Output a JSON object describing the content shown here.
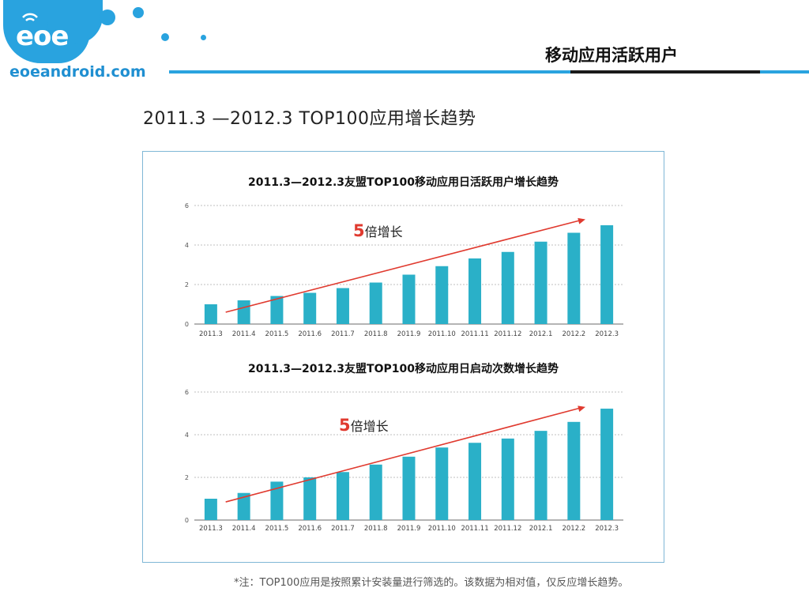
{
  "logo": {
    "text": "eoe",
    "domain": "eoeandroid.com"
  },
  "header": {
    "title": "移动应用活跃用户"
  },
  "page": {
    "title": "2011.3 —2012.3  TOP100应用增长趋势",
    "footnote": "*注：TOP100应用是按照累计安装量进行筛选的。该数据为相对值，仅反应增长趋势。"
  },
  "colors": {
    "bar": "#2ab0c8",
    "arrow": "#e03a2f",
    "brand": "#29a3df",
    "grid": "#bfbfbf"
  },
  "chart_data": [
    {
      "type": "bar",
      "title": "2011.3—2012.3友盟TOP100移动应用日活跃用户增长趋势",
      "categories": [
        "2011.3",
        "2011.4",
        "2011.5",
        "2011.6",
        "2011.7",
        "2011.8",
        "2011.9",
        "2011.10",
        "2011.11",
        "2011.12",
        "2012.1",
        "2012.2",
        "2012.3"
      ],
      "values": [
        1.0,
        1.2,
        1.42,
        1.58,
        1.82,
        2.1,
        2.5,
        2.93,
        3.32,
        3.65,
        4.17,
        4.62,
        5.0
      ],
      "ylim": [
        0,
        6
      ],
      "yticks": [
        "0",
        "2",
        "4",
        "6"
      ],
      "annotation": {
        "big": "5",
        "text": "倍增长"
      },
      "grid": true
    },
    {
      "type": "bar",
      "title": "2011.3—2012.3友盟TOP100移动应用日启动次数增长趋势",
      "categories": [
        "2011.3",
        "2011.4",
        "2011.5",
        "2011.6",
        "2011.7",
        "2011.8",
        "2011.9",
        "2011.10",
        "2011.11",
        "2011.12",
        "2012.1",
        "2012.2",
        "2012.3"
      ],
      "values": [
        1.0,
        1.27,
        1.8,
        2.0,
        2.25,
        2.6,
        2.97,
        3.4,
        3.62,
        3.82,
        4.18,
        4.6,
        5.22
      ],
      "ylim": [
        0,
        6
      ],
      "yticks": [
        "0",
        "2",
        "4",
        "6"
      ],
      "annotation": {
        "big": "5",
        "text": "倍增长"
      },
      "grid": true
    }
  ]
}
